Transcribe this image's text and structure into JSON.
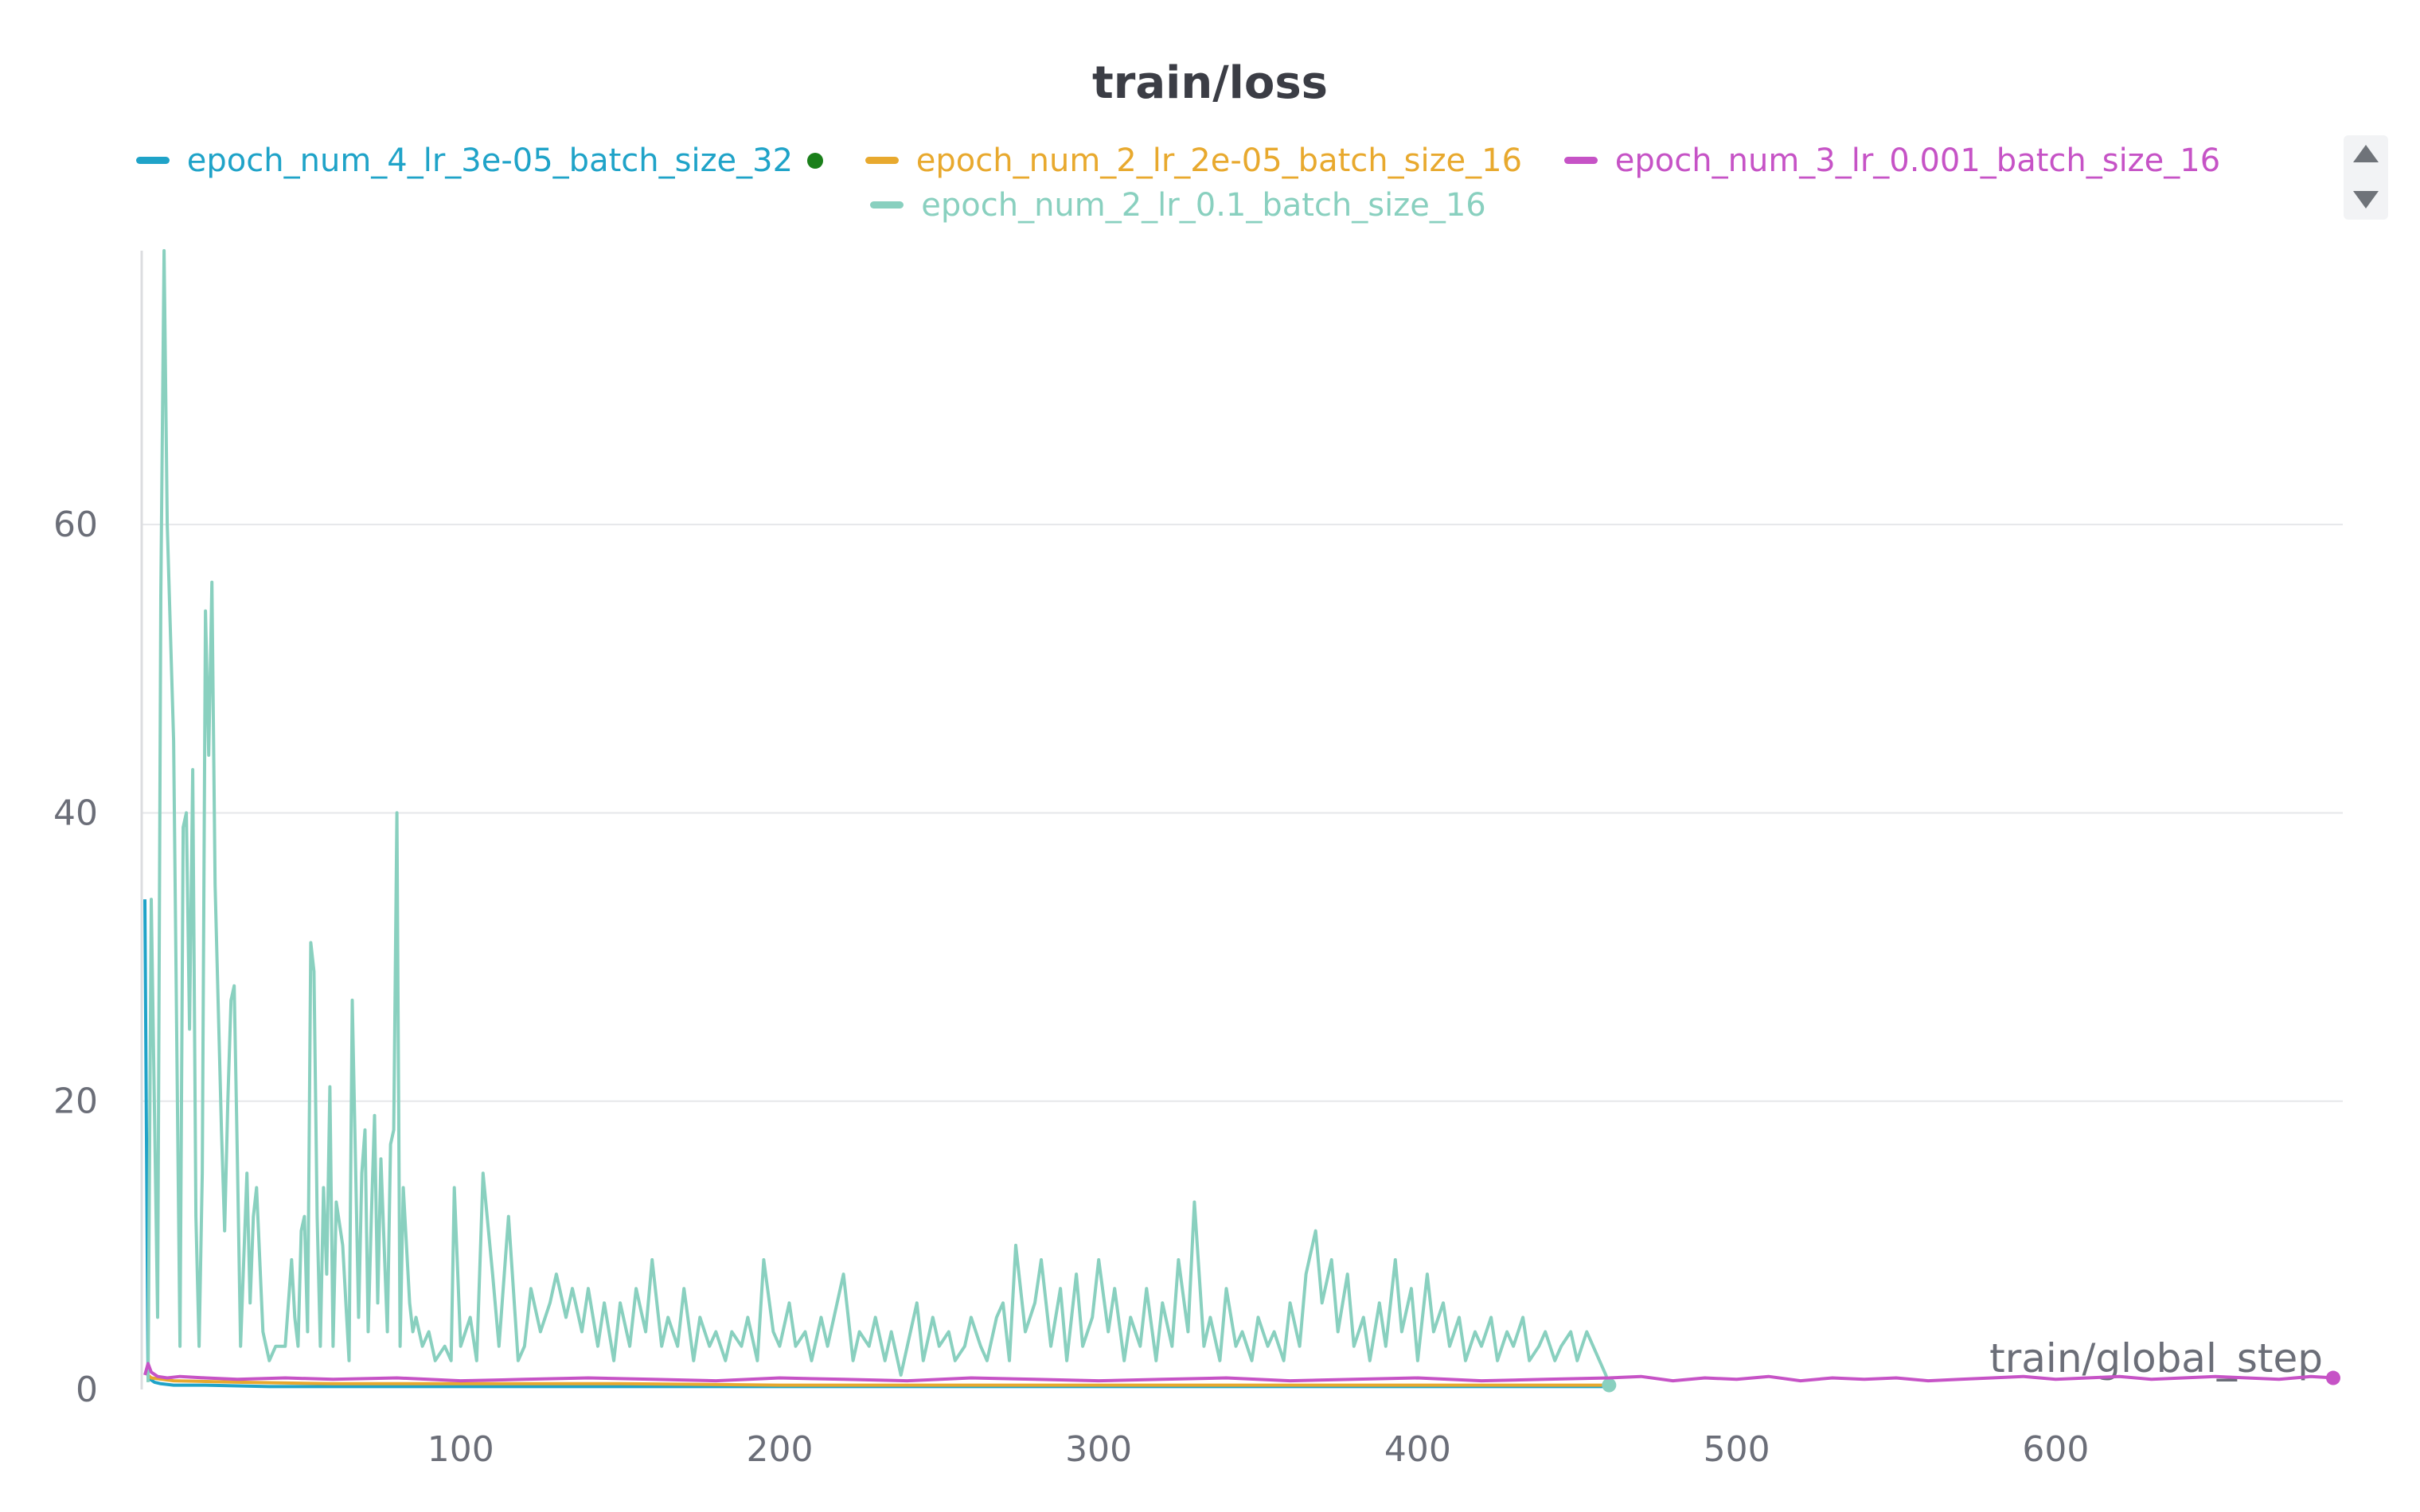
{
  "chart_data": {
    "type": "line",
    "title": "train/loss",
    "xlabel": "train/global_step",
    "ylabel": "",
    "xlim": [
      0,
      690
    ],
    "ylim": [
      0,
      79
    ],
    "xticks": [
      100,
      200,
      300,
      400,
      500,
      600
    ],
    "yticks": [
      0,
      20,
      40,
      60
    ],
    "grid": true,
    "legend_position": "top",
    "series": [
      {
        "name": "epoch_num_4_lr_3e-05_batch_size_32",
        "color": "#1fa3c8",
        "x": [
          1,
          2,
          4,
          6,
          10,
          20,
          40,
          60,
          80,
          100,
          130,
          160,
          200,
          240,
          280,
          320,
          360,
          400,
          440,
          460
        ],
        "y": [
          34,
          0.8,
          0.5,
          0.4,
          0.3,
          0.3,
          0.2,
          0.2,
          0.2,
          0.2,
          0.2,
          0.2,
          0.2,
          0.2,
          0.2,
          0.2,
          0.2,
          0.2,
          0.2,
          0.2
        ]
      },
      {
        "name": "epoch_num_2_lr_2e-05_batch_size_16",
        "color": "#e8a92e",
        "x": [
          1,
          3,
          10,
          30,
          60,
          100,
          150,
          200,
          250,
          300,
          350,
          400,
          450,
          460
        ],
        "y": [
          1.2,
          0.8,
          0.6,
          0.5,
          0.4,
          0.4,
          0.4,
          0.3,
          0.3,
          0.3,
          0.3,
          0.3,
          0.3,
          0.3
        ]
      },
      {
        "name": "epoch_num_3_lr_0.001_batch_size_16",
        "color": "#c653c6",
        "x": [
          1,
          2,
          3,
          5,
          8,
          12,
          20,
          30,
          45,
          60,
          80,
          100,
          120,
          140,
          160,
          180,
          200,
          220,
          240,
          260,
          280,
          300,
          320,
          340,
          360,
          380,
          400,
          420,
          440,
          460,
          470,
          480,
          490,
          500,
          510,
          520,
          530,
          540,
          550,
          560,
          570,
          580,
          590,
          600,
          610,
          620,
          630,
          640,
          650,
          660,
          670,
          680,
          687
        ],
        "y": [
          1.0,
          1.8,
          1.2,
          0.9,
          0.8,
          0.9,
          0.8,
          0.7,
          0.8,
          0.7,
          0.8,
          0.6,
          0.7,
          0.8,
          0.7,
          0.6,
          0.8,
          0.7,
          0.6,
          0.8,
          0.7,
          0.6,
          0.7,
          0.8,
          0.6,
          0.7,
          0.8,
          0.6,
          0.7,
          0.8,
          0.9,
          0.6,
          0.8,
          0.7,
          0.9,
          0.6,
          0.8,
          0.7,
          0.8,
          0.6,
          0.7,
          0.8,
          0.9,
          0.7,
          0.8,
          0.9,
          0.7,
          0.8,
          0.9,
          0.8,
          0.7,
          0.9,
          0.8
        ]
      },
      {
        "name": "epoch_num_2_lr_0.1_batch_size_16",
        "color": "#89d0bf",
        "x": [
          2,
          3,
          5,
          6,
          7,
          8,
          10,
          12,
          13,
          14,
          15,
          16,
          17,
          18,
          19,
          20,
          21,
          22,
          23,
          25,
          26,
          27,
          28,
          29,
          30,
          31,
          33,
          34,
          35,
          36,
          38,
          40,
          42,
          45,
          47,
          48,
          49,
          50,
          51,
          52,
          53,
          54,
          55,
          56,
          57,
          58,
          59,
          60,
          61,
          63,
          65,
          66,
          67,
          68,
          69,
          70,
          71,
          72,
          73,
          74,
          75,
          77,
          78,
          79,
          80,
          81,
          82,
          84,
          85,
          86,
          88,
          90,
          92,
          95,
          97,
          98,
          100,
          103,
          105,
          107,
          110,
          112,
          115,
          118,
          120,
          122,
          125,
          128,
          130,
          133,
          135,
          138,
          140,
          143,
          145,
          148,
          150,
          153,
          155,
          158,
          160,
          163,
          165,
          168,
          170,
          173,
          175,
          178,
          180,
          183,
          185,
          188,
          190,
          193,
          195,
          198,
          200,
          203,
          205,
          208,
          210,
          213,
          215,
          218,
          220,
          223,
          225,
          228,
          230,
          233,
          235,
          238,
          240,
          243,
          245,
          248,
          250,
          253,
          255,
          258,
          260,
          263,
          265,
          268,
          270,
          272,
          274,
          277,
          280,
          282,
          285,
          288,
          290,
          293,
          295,
          298,
          300,
          303,
          305,
          308,
          310,
          313,
          315,
          318,
          320,
          323,
          325,
          328,
          330,
          333,
          335,
          338,
          340,
          343,
          345,
          348,
          350,
          353,
          355,
          358,
          360,
          363,
          365,
          368,
          370,
          373,
          375,
          378,
          380,
          383,
          385,
          388,
          390,
          393,
          395,
          398,
          400,
          403,
          405,
          408,
          410,
          413,
          415,
          418,
          420,
          423,
          425,
          428,
          430,
          433,
          435,
          438,
          440,
          443,
          445,
          448,
          450,
          453,
          455,
          457,
          459,
          460
        ],
        "y": [
          0.5,
          34,
          5,
          55,
          79,
          60,
          45,
          3,
          39,
          40,
          25,
          43,
          12,
          3,
          15,
          54,
          44,
          56,
          35,
          18,
          11,
          20,
          27,
          28,
          16,
          3,
          15,
          6,
          12,
          14,
          4,
          2,
          3,
          3,
          9,
          5,
          3,
          11,
          12,
          4,
          31,
          29,
          12,
          3,
          14,
          8,
          21,
          3,
          13,
          10,
          2,
          27,
          16,
          5,
          15,
          18,
          4,
          12,
          19,
          6,
          16,
          4,
          17,
          18,
          40,
          3,
          14,
          6,
          4,
          5,
          3,
          4,
          2,
          3,
          2,
          14,
          3,
          5,
          2,
          15,
          8,
          3,
          12,
          2,
          3,
          7,
          4,
          6,
          8,
          5,
          7,
          4,
          7,
          3,
          6,
          2,
          6,
          3,
          7,
          4,
          9,
          3,
          5,
          3,
          7,
          2,
          5,
          3,
          4,
          2,
          4,
          3,
          5,
          2,
          9,
          4,
          3,
          6,
          3,
          4,
          2,
          5,
          3,
          6,
          8,
          2,
          4,
          3,
          5,
          2,
          4,
          1,
          3,
          6,
          2,
          5,
          3,
          4,
          2,
          3,
          5,
          3,
          2,
          5,
          6,
          2,
          10,
          4,
          6,
          9,
          3,
          7,
          2,
          8,
          3,
          5,
          9,
          4,
          7,
          2,
          5,
          3,
          7,
          2,
          6,
          3,
          9,
          4,
          13,
          3,
          5,
          2,
          7,
          3,
          4,
          2,
          5,
          3,
          4,
          2,
          6,
          3,
          8,
          11,
          6,
          9,
          4,
          8,
          3,
          5,
          2,
          6,
          3,
          9,
          4,
          7,
          2,
          8,
          4,
          6,
          3,
          5,
          2,
          4,
          3,
          5,
          2,
          4,
          3,
          5,
          2,
          3,
          4,
          2,
          3,
          4,
          2,
          4,
          3,
          2,
          1,
          0.3
        ]
      }
    ]
  }
}
